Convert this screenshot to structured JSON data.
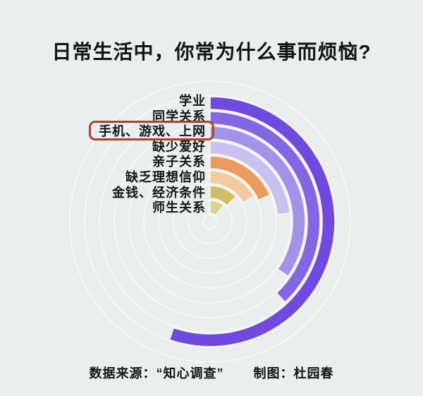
{
  "title": "日常生活中，你常为什么事而烦恼?",
  "footer": {
    "source": "数据来源：“知心调查”",
    "credit": "制图：杜园春"
  },
  "style": {
    "background_color": "#e9efee",
    "gridline_color": "#f8fbfb",
    "separator_color": "#f9f4e9",
    "text_color": "#141414",
    "highlight_box_color": "#b23f2d"
  },
  "chart_data": {
    "type": "bar",
    "subtype": "radial-bar",
    "title": "日常生活中，你常为什么事而烦恼?",
    "start_angle_deg": 0,
    "direction": "clockwise",
    "categories": [
      "学业",
      "同学关系",
      "手机、游戏、上网",
      "缺少爱好",
      "亲子关系",
      "缺乏理想信仰",
      "金钱、经济条件",
      "师生关系"
    ],
    "sweep_deg": [
      199,
      137,
      125,
      84,
      66,
      60,
      46,
      40
    ],
    "values_pct_approx": [
      55.3,
      38.1,
      34.7,
      23.3,
      18.3,
      16.7,
      12.8,
      11.1
    ],
    "colors": [
      "#7049e0",
      "#8465e2",
      "#a292e8",
      "#c8c0f0",
      "#ea9c5c",
      "#f3c9a2",
      "#cfbd6c",
      "#dfd194"
    ],
    "highlighted_index": 2,
    "highlighted_category": "手机、游戏、上网",
    "legend_position": "left-labels",
    "grid": "concentric-circles"
  }
}
